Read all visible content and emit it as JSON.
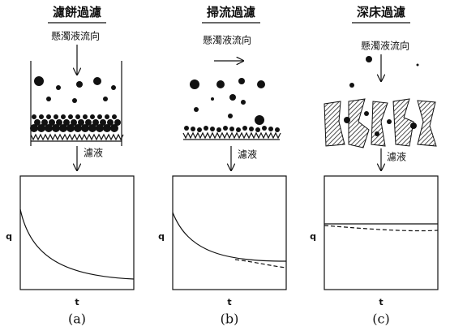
{
  "panels": [
    {
      "title": "濾餅過濾",
      "flow_label": "懸濁液流向",
      "filtrate_label": "濾液",
      "y_label": "q",
      "x_label": "t",
      "caption": "(a)"
    },
    {
      "title": "掃流過濾",
      "flow_label": "懸濁液流向",
      "filtrate_label": "濾液",
      "y_label": "q",
      "x_label": "t",
      "caption": "(b)"
    },
    {
      "title": "深床過濾",
      "flow_label": "懸濁液流向",
      "filtrate_label": "濾液",
      "y_label": "q",
      "x_label": "t",
      "caption": "(c)"
    }
  ]
}
